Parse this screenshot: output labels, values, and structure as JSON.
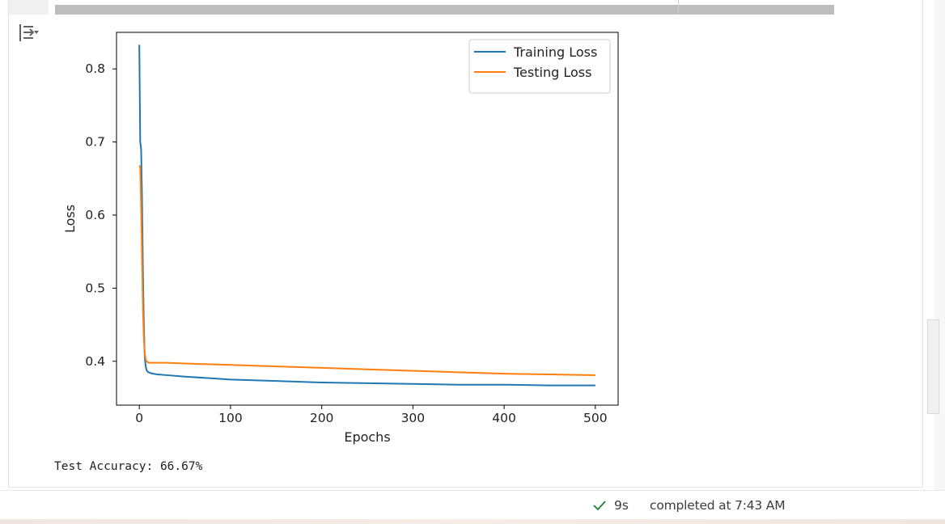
{
  "output_toggle": {
    "icon": "output-toggle-icon"
  },
  "chart_data": {
    "type": "line",
    "title": "",
    "xlabel": "Epochs",
    "ylabel": "Loss",
    "xlim": [
      -25,
      525
    ],
    "ylim": [
      0.34,
      0.85
    ],
    "xticks": [
      0,
      100,
      200,
      300,
      400,
      500
    ],
    "yticks": [
      0.4,
      0.5,
      0.6,
      0.7,
      0.8
    ],
    "grid": false,
    "legend_position": "top-right",
    "series": [
      {
        "name": "Training Loss",
        "color": "#1f77b4",
        "x": [
          0,
          1,
          2,
          3,
          4,
          5,
          6,
          7,
          8,
          9,
          10,
          12,
          15,
          20,
          30,
          50,
          75,
          100,
          150,
          200,
          250,
          300,
          350,
          400,
          450,
          500
        ],
        "y": [
          0.833,
          0.7,
          0.69,
          0.62,
          0.52,
          0.45,
          0.405,
          0.393,
          0.388,
          0.386,
          0.385,
          0.384,
          0.383,
          0.382,
          0.381,
          0.379,
          0.377,
          0.375,
          0.373,
          0.371,
          0.37,
          0.369,
          0.368,
          0.368,
          0.367,
          0.367
        ]
      },
      {
        "name": "Testing Loss",
        "color": "#ff7f0e",
        "x": [
          0,
          1,
          2,
          3,
          4,
          5,
          6,
          7,
          8,
          9,
          10,
          12,
          15,
          20,
          30,
          50,
          75,
          100,
          150,
          200,
          250,
          300,
          350,
          400,
          450,
          500
        ],
        "y": [
          0.668,
          0.665,
          0.61,
          0.54,
          0.47,
          0.43,
          0.41,
          0.403,
          0.4,
          0.399,
          0.398,
          0.398,
          0.398,
          0.398,
          0.398,
          0.397,
          0.396,
          0.395,
          0.393,
          0.391,
          0.389,
          0.387,
          0.385,
          0.383,
          0.382,
          0.381
        ]
      }
    ]
  },
  "output_text": "Test Accuracy: 66.67%",
  "status": {
    "check_icon": "check-icon",
    "duration": "9s",
    "completed": "completed at 7:43 AM"
  }
}
